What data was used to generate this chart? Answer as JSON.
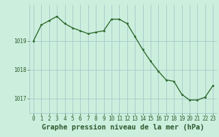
{
  "x": [
    0,
    1,
    2,
    3,
    4,
    5,
    6,
    7,
    8,
    9,
    10,
    11,
    12,
    13,
    14,
    15,
    16,
    17,
    18,
    19,
    20,
    21,
    22,
    23
  ],
  "y": [
    1019.0,
    1019.55,
    1019.7,
    1019.85,
    1019.6,
    1019.45,
    1019.35,
    1019.25,
    1019.3,
    1019.35,
    1019.75,
    1019.75,
    1019.6,
    1019.15,
    1018.7,
    1018.3,
    1017.95,
    1017.65,
    1017.6,
    1017.15,
    1016.95,
    1016.95,
    1017.05,
    1017.45
  ],
  "line_color": "#2d6a2d",
  "marker_color": "#2d6a2d",
  "bg_color": "#cceedd",
  "grid_color": "#aacccc",
  "text_color": "#2d5a2d",
  "xlabel": "Graphe pression niveau de la mer (hPa)",
  "ylim": [
    1016.5,
    1020.25
  ],
  "yticks": [
    1017,
    1018,
    1019
  ],
  "xticks": [
    0,
    1,
    2,
    3,
    4,
    5,
    6,
    7,
    8,
    9,
    10,
    11,
    12,
    13,
    14,
    15,
    16,
    17,
    18,
    19,
    20,
    21,
    22,
    23
  ],
  "tick_fontsize": 5.5,
  "xlabel_fontsize": 7.5
}
